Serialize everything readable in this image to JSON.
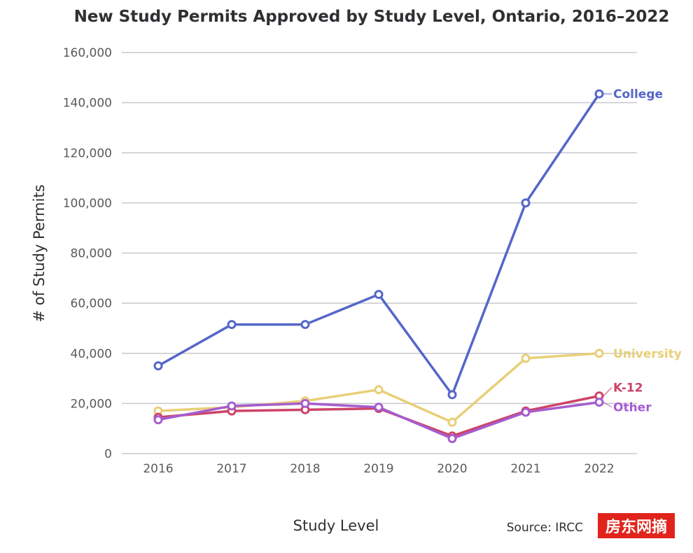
{
  "chart_data": {
    "type": "line",
    "title": "New Study Permits Approved by Study Level, Ontario, 2016–2022",
    "xlabel": "Study Level",
    "ylabel": "# of Study Permits",
    "x": [
      "2016",
      "2017",
      "2018",
      "2019",
      "2020",
      "2021",
      "2022"
    ],
    "ylim": [
      0,
      160000
    ],
    "yticks": [
      "0",
      "20,000",
      "40,000",
      "60,000",
      "80,000",
      "100,000",
      "120,000",
      "140,000",
      "160,000"
    ],
    "grid": true,
    "series": [
      {
        "name": "College",
        "color": "#5566c8",
        "values": [
          35000,
          51500,
          51500,
          63500,
          23500,
          100000,
          143500
        ]
      },
      {
        "name": "University",
        "color": "#e8cf78",
        "values": [
          17000,
          18500,
          21000,
          25500,
          12500,
          38000,
          40000
        ]
      },
      {
        "name": "K-12",
        "color": "#cc4466",
        "values": [
          14500,
          17000,
          17500,
          18000,
          7000,
          17000,
          23000
        ]
      },
      {
        "name": "Other",
        "color": "#a65ccf",
        "values": [
          13500,
          19000,
          20000,
          18500,
          6000,
          16500,
          20500
        ]
      }
    ]
  },
  "source": "Source: IRCC",
  "watermark": "房东网摘"
}
